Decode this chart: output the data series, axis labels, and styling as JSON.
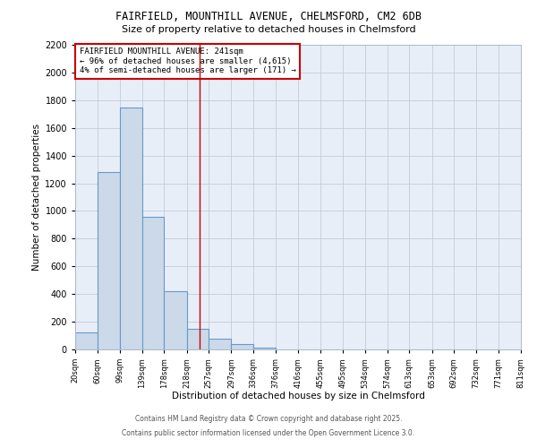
{
  "title1": "FAIRFIELD, MOUNTHILL AVENUE, CHELMSFORD, CM2 6DB",
  "title2": "Size of property relative to detached houses in Chelmsford",
  "xlabel": "Distribution of detached houses by size in Chelmsford",
  "ylabel": "Number of detached properties",
  "annotation_line1": "FAIRFIELD MOUNTHILL AVENUE: 241sqm",
  "annotation_line2": "← 96% of detached houses are smaller (4,615)",
  "annotation_line3": "4% of semi-detached houses are larger (171) →",
  "footer1": "Contains HM Land Registry data © Crown copyright and database right 2025.",
  "footer2": "Contains public sector information licensed under the Open Government Licence 3.0.",
  "bins": [
    20,
    60,
    99,
    139,
    178,
    218,
    257,
    297,
    336,
    376,
    416,
    455,
    495,
    534,
    574,
    613,
    653,
    692,
    732,
    771,
    811
  ],
  "counts": [
    120,
    1280,
    1750,
    960,
    420,
    150,
    75,
    40,
    15,
    0,
    0,
    0,
    0,
    0,
    0,
    0,
    0,
    0,
    0,
    0
  ],
  "bar_color": "#ccd9e8",
  "bar_edge_color": "#6699cc",
  "vline_x": 241,
  "vline_color": "#cc0000",
  "ylim": [
    0,
    2200
  ],
  "yticks": [
    0,
    200,
    400,
    600,
    800,
    1000,
    1200,
    1400,
    1600,
    1800,
    2000,
    2200
  ],
  "plot_bg_color": "#e8eef8",
  "fig_bg_color": "#ffffff",
  "annotation_box_color": "#ffffff",
  "annotation_box_edge": "#cc0000",
  "grid_color": "#c0ccdd"
}
